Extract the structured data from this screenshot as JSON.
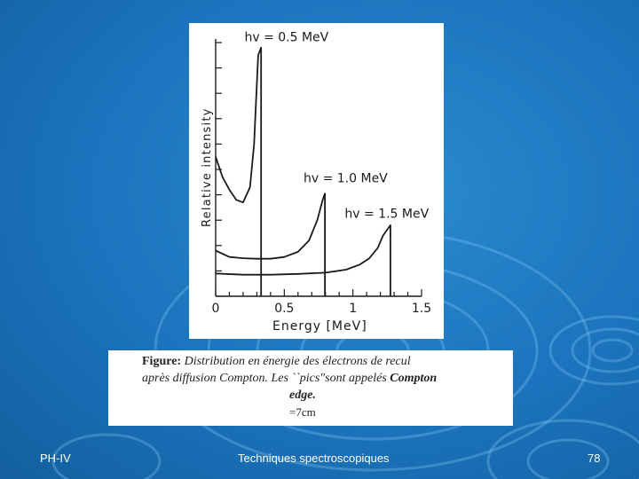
{
  "chart_data": {
    "type": "line",
    "title": "",
    "xlabel": "Energy  [MeV]",
    "ylabel": "Relative intensity",
    "xlim": [
      0,
      1.5
    ],
    "ylim": [
      0,
      1
    ],
    "x_ticks": [
      "0",
      "0.5",
      "1",
      "1.5"
    ],
    "x_tick_values": [
      0,
      0.5,
      1,
      1.5
    ],
    "series": [
      {
        "name": "hv = 0.5 MeV",
        "x": [
          0,
          0.05,
          0.1,
          0.15,
          0.2,
          0.25,
          0.28,
          0.31,
          0.331,
          0.331
        ],
        "y": [
          0.55,
          0.47,
          0.42,
          0.38,
          0.37,
          0.43,
          0.6,
          0.95,
          0.98,
          0
        ]
      },
      {
        "name": "hv = 1.0 MeV",
        "x": [
          0,
          0.1,
          0.2,
          0.3,
          0.4,
          0.5,
          0.6,
          0.68,
          0.74,
          0.78,
          0.796,
          0.796
        ],
        "y": [
          0.18,
          0.155,
          0.15,
          0.148,
          0.148,
          0.155,
          0.175,
          0.22,
          0.3,
          0.38,
          0.405,
          0
        ]
      },
      {
        "name": "hv = 1.5 MeV",
        "x": [
          0,
          0.2,
          0.4,
          0.6,
          0.8,
          0.95,
          1.05,
          1.12,
          1.18,
          1.22,
          1.273,
          1.273
        ],
        "y": [
          0.09,
          0.085,
          0.085,
          0.088,
          0.093,
          0.105,
          0.125,
          0.15,
          0.19,
          0.24,
          0.28,
          0
        ]
      }
    ],
    "annotations": [
      "hv = 0.5 MeV",
      "hv = 1.0 MeV",
      "hv = 1.5 MeV"
    ]
  },
  "caption": {
    "label": "Figure:",
    "line1": "Distribution en énergie des électrons de recul",
    "line2a": "après diffusion Compton. Les ``pics\"sont appelés ",
    "line2b": "Compton",
    "line3": "edge.",
    "line4": "=7cm"
  },
  "footer": {
    "left": "PH-IV",
    "center": "Techniques spectroscopiques",
    "right": "78"
  },
  "colors": {
    "background": "#1b74bd",
    "curve": "#1a1a1a"
  }
}
